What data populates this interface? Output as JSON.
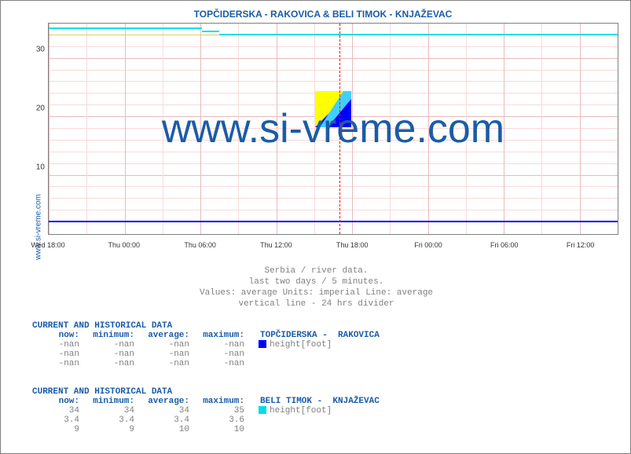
{
  "site_label": "www.si-vreme.com",
  "chart": {
    "title": "TOPČIDERSKA -  RAKOVICA &  BELI TIMOK -  KNJAŽEVAC",
    "background_color": "#ffffff",
    "border_color": "#808080",
    "grid_minor_color": "#f7dada",
    "grid_major_color": "#e8baba",
    "divider_color": "#ff0000",
    "avg_line_color": "#c0c000",
    "y": {
      "min": 0,
      "max": 36,
      "ticks": [
        10,
        20,
        30
      ],
      "fontsize": 10
    },
    "x": {
      "ticks": [
        "Wed 18:00",
        "Thu 00:00",
        "Thu 06:00",
        "Thu 12:00",
        "Thu 18:00",
        "Fri 00:00",
        "Fri 06:00",
        "Fri 12:00"
      ],
      "fontsize": 9,
      "divider_index": 3.83
    },
    "series": [
      {
        "name": "TOPČIDERSKA - RAKOVICA",
        "color": "#0000ff",
        "avg_value": 2,
        "segments": [
          {
            "x0": 0.0,
            "x1": 1.0,
            "y": 2
          }
        ]
      },
      {
        "name": "BELI TIMOK - KNJAŽEVAC",
        "color": "#00e0e0",
        "avg_value": 34,
        "segments": [
          {
            "x0": 0.0,
            "x1": 0.27,
            "y": 35
          },
          {
            "x0": 0.27,
            "x1": 0.3,
            "y": 34.5
          },
          {
            "x0": 0.3,
            "x1": 1.0,
            "y": 34
          }
        ]
      }
    ],
    "watermark": "www.si-vreme.com"
  },
  "caption": {
    "line1": "Serbia / river data.",
    "line2": "last two days / 5 minutes.",
    "line3": "Values: average  Units: imperial  Line: average",
    "line4": "vertical line - 24 hrs  divider"
  },
  "tables": [
    {
      "heading": "CURRENT AND HISTORICAL DATA",
      "station": "TOPČIDERSKA -  RAKOVICA",
      "columns": [
        "now:",
        "minimum:",
        "average:",
        "maximum:"
      ],
      "legend_color": "#0000ff",
      "legend_label": "height[foot]",
      "rows": [
        [
          "-nan",
          "-nan",
          "-nan",
          "-nan"
        ],
        [
          "-nan",
          "-nan",
          "-nan",
          "-nan"
        ],
        [
          "-nan",
          "-nan",
          "-nan",
          "-nan"
        ]
      ]
    },
    {
      "heading": "CURRENT AND HISTORICAL DATA",
      "station": "BELI TIMOK -  KNJAŽEVAC",
      "columns": [
        "now:",
        "minimum:",
        "average:",
        "maximum:"
      ],
      "legend_color": "#00e0e0",
      "legend_label": "height[foot]",
      "rows": [
        [
          "34",
          "34",
          "34",
          "35"
        ],
        [
          "3.4",
          "3.4",
          "3.4",
          "3.6"
        ],
        [
          "9",
          "9",
          "10",
          "10"
        ]
      ]
    }
  ]
}
